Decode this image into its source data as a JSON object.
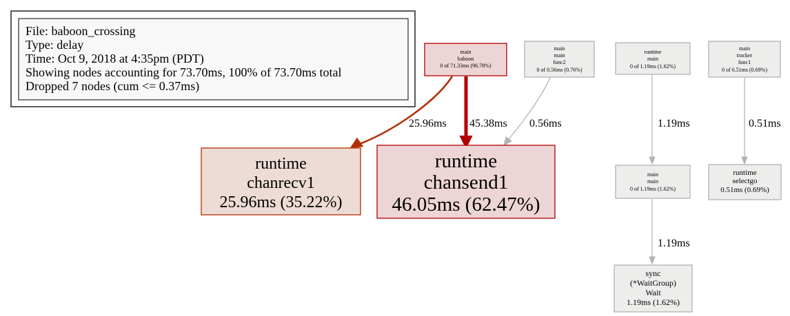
{
  "legend": {
    "lines": [
      "File: baboon_crossing",
      "Type: delay",
      "Time: Oct 9, 2018 at 4:35pm (PDT)",
      "Showing nodes accounting for 73.70ms, 100% of 73.70ms total",
      "Dropped 7 nodes (cum <= 0.37ms)"
    ]
  },
  "colors": {
    "hot_edge": "#b22e00",
    "hottest_edge": "#b20000",
    "cold_edge": "#b2b2b2",
    "main_baboon_fill": "#edd5d5",
    "main_baboon_border": "#b20000",
    "chanrecv_fill": "#eddcd5",
    "chanrecv_border": "#b22e00",
    "chansend_fill": "#edd5d5",
    "chansend_border": "#b20000",
    "cold_fill": "#ededec",
    "cold_border": "#b2b2b2"
  },
  "nodes": {
    "main_baboon": {
      "lines": [
        "main",
        "baboon",
        "0 of 71.33ms (96.78%)"
      ]
    },
    "main_func2": {
      "lines": [
        "main",
        "main",
        "func2",
        "0 of 0.56ms (0.76%)"
      ]
    },
    "runtime_main": {
      "lines": [
        "runtime",
        "main",
        "0 of 1.19ms (1.62%)"
      ]
    },
    "tracker_func1": {
      "lines": [
        "main",
        "tracker",
        "func1",
        "0 of 0.51ms (0.69%)"
      ]
    },
    "chanrecv1": {
      "lines": [
        "runtime",
        "chanrecv1",
        "25.96ms (35.22%)"
      ]
    },
    "chansend1": {
      "lines": [
        "runtime",
        "chansend1",
        "46.05ms (62.47%)"
      ]
    },
    "main_main": {
      "lines": [
        "main",
        "main",
        "0 of 1.19ms (1.62%)"
      ]
    },
    "selectgo": {
      "lines": [
        "runtime",
        "selectgo",
        "0.51ms (0.69%)"
      ]
    },
    "waitgroup_wait": {
      "lines": [
        "sync",
        "(*WaitGroup)",
        "Wait",
        "1.19ms (1.62%)"
      ]
    }
  },
  "edges": {
    "baboon_to_chanrecv1": "25.96ms",
    "baboon_to_chansend1": "45.38ms",
    "func2_to_chansend1": "0.56ms",
    "runtime_main_to_main_main": "1.19ms",
    "tracker_func1_to_selectgo": "0.51ms",
    "main_main_to_wait": "1.19ms"
  }
}
